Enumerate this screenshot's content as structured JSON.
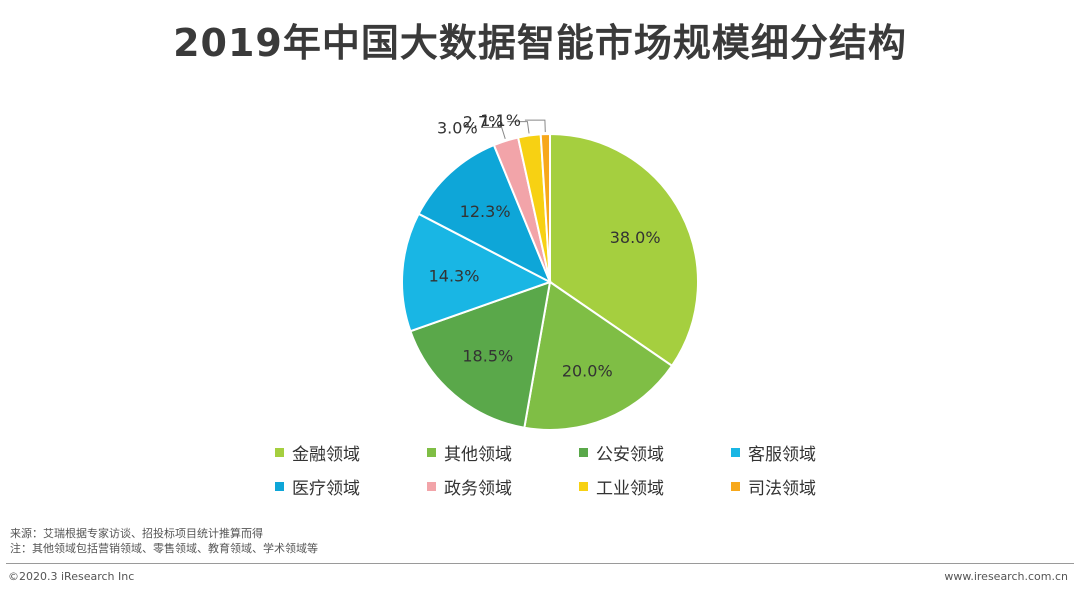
{
  "header": {
    "title": "2019年中国大数据智能市场规模细分结构"
  },
  "chart_data": {
    "type": "pie",
    "title": "2019年中国大数据智能市场规模细分结构",
    "categories": [
      "金融领域",
      "其他领域",
      "公安领域",
      "客服领域",
      "医疗领域",
      "政务领域",
      "工业领域",
      "司法领域"
    ],
    "values": [
      38.0,
      20.0,
      18.5,
      14.3,
      12.3,
      3.0,
      2.7,
      1.1
    ],
    "labels": [
      "38.0%",
      "20.0%",
      "18.5%",
      "14.3%",
      "12.3%",
      "3.0%",
      "2.7%",
      "1.1%"
    ],
    "colors": [
      "#a5cf3f",
      "#7fbe45",
      "#5aa84a",
      "#19b6e4",
      "#0ea6d8",
      "#f2a4a9",
      "#f7d113",
      "#f7a81b"
    ],
    "legend_position": "bottom"
  },
  "footer": {
    "source": "来源：艾瑞根据专家访谈、招投标项目统计推算而得",
    "note": "注：其他领域包括营销领域、零售领域、教育领域、学术领域等",
    "copyright": "©2020.3 iResearch Inc",
    "website": "www.iresearch.com.cn"
  }
}
